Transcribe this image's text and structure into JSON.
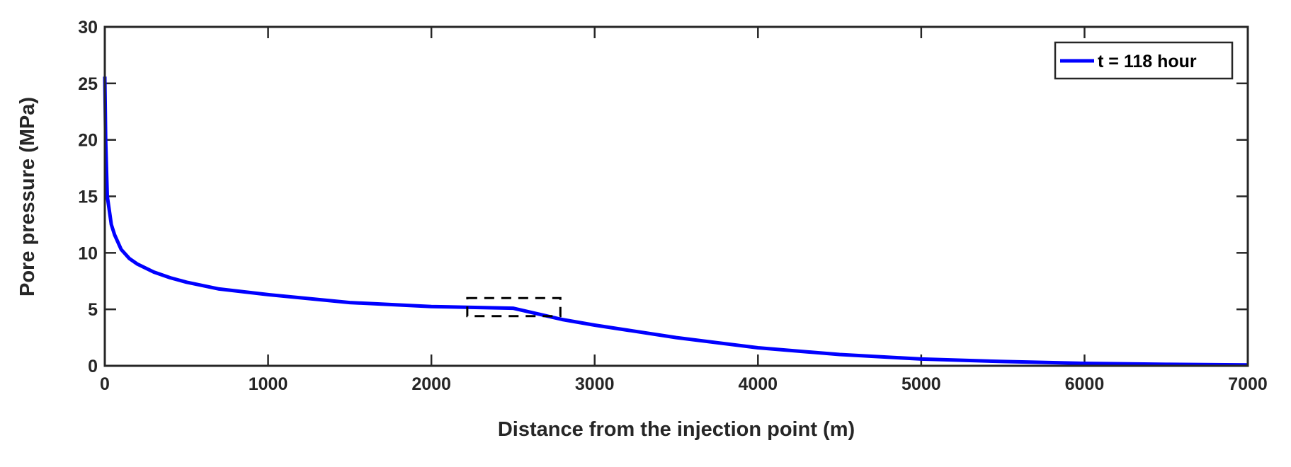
{
  "chart_data": {
    "type": "line",
    "title": "",
    "xlabel": "Distance from the injection point (m)",
    "ylabel": "Pore pressure (MPa)",
    "xlim": [
      0,
      7000
    ],
    "ylim": [
      0,
      30
    ],
    "xticks": [
      0,
      1000,
      2000,
      3000,
      4000,
      5000,
      6000,
      7000
    ],
    "yticks": [
      0,
      5,
      10,
      15,
      20,
      25,
      30
    ],
    "grid": false,
    "legend_position": "top-right",
    "series": [
      {
        "name": "t = 118 hour",
        "color": "#0000ff",
        "x": [
          0,
          5,
          15,
          25,
          40,
          60,
          100,
          150,
          200,
          300,
          400,
          500,
          700,
          1000,
          1500,
          2000,
          2500,
          2800,
          3000,
          3500,
          4000,
          4500,
          5000,
          5500,
          6000,
          6500,
          7000
        ],
        "y": [
          25.6,
          20,
          15,
          14,
          12.5,
          11.6,
          10.3,
          9.5,
          9.0,
          8.3,
          7.8,
          7.4,
          6.8,
          6.3,
          5.6,
          5.25,
          5.1,
          4.1,
          3.6,
          2.5,
          1.6,
          1.0,
          0.6,
          0.38,
          0.22,
          0.13,
          0.08
        ]
      }
    ],
    "annotations": [
      {
        "type": "dashed-rectangle",
        "x_range": [
          2220,
          2790
        ],
        "y_range": [
          4.4,
          6.0
        ],
        "color": "#000000"
      }
    ]
  }
}
